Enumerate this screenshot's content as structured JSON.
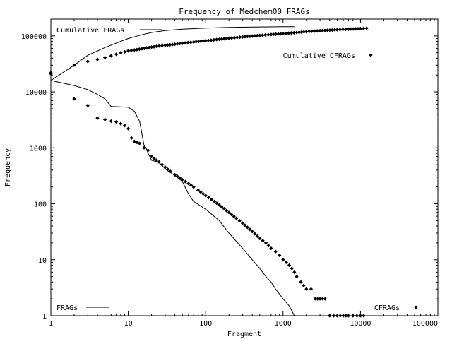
{
  "chart_data": {
    "type": "line",
    "title": "Frequency of Medchem00 FRAGs",
    "xlabel": "Fragment",
    "ylabel": "Frequency",
    "x_scale": "log",
    "y_scale": "log",
    "xlim": [
      1,
      100000
    ],
    "ylim": [
      1,
      200000
    ],
    "grid": false,
    "x_ticks": [
      {
        "value": 1,
        "label": "1"
      },
      {
        "value": 10,
        "label": "10"
      },
      {
        "value": 100,
        "label": "100"
      },
      {
        "value": 1000,
        "label": "1000"
      },
      {
        "value": 10000,
        "label": "10000"
      },
      {
        "value": 100000,
        "label": "100000"
      }
    ],
    "y_ticks": [
      {
        "value": 1,
        "label": "1"
      },
      {
        "value": 10,
        "label": "10"
      },
      {
        "value": 100,
        "label": "100"
      },
      {
        "value": 1000,
        "label": "1000"
      },
      {
        "value": 10000,
        "label": "10000"
      },
      {
        "value": 100000,
        "label": "100000"
      }
    ],
    "series": [
      {
        "name": "Cumulative FRAGs",
        "style": "line",
        "legend_position": "top-left",
        "x": [
          1,
          2,
          3,
          5,
          8,
          10,
          15,
          20,
          30,
          50,
          100,
          200,
          500,
          1000,
          1400
        ],
        "y": [
          16000,
          30000,
          45000,
          62000,
          80000,
          90000,
          105000,
          115000,
          125000,
          132000,
          138000,
          142000,
          145000,
          146000,
          146500
        ]
      },
      {
        "name": "Cumulative CFRAGs",
        "style": "points",
        "legend_position": "top-right",
        "x": [
          1,
          2,
          3,
          4,
          5,
          6,
          7,
          8,
          9,
          10,
          12,
          15,
          20,
          25,
          30,
          40,
          50,
          70,
          100,
          150,
          200,
          300,
          500,
          700,
          1000,
          1500,
          2000,
          3000,
          5000,
          7000,
          10000,
          12000
        ],
        "y": [
          22000,
          30000,
          35000,
          38000,
          41000,
          44000,
          47000,
          50000,
          52000,
          54000,
          56000,
          59000,
          63000,
          66000,
          68000,
          71000,
          74000,
          78000,
          82000,
          87000,
          91000,
          96000,
          102000,
          106000,
          110000,
          115000,
          119000,
          124000,
          129000,
          132000,
          135000,
          137000
        ]
      },
      {
        "name": "FRAGs",
        "style": "line",
        "legend_position": "bottom-left",
        "x": [
          1,
          2,
          3,
          4,
          5,
          6,
          8,
          10,
          12,
          14,
          15,
          16,
          17,
          18,
          20,
          25,
          30,
          40,
          50,
          60,
          70,
          100,
          150,
          200,
          300,
          400,
          500,
          600,
          700,
          800,
          1000,
          1200,
          1400
        ],
        "y": [
          16000,
          13000,
          11000,
          9000,
          7500,
          5500,
          5400,
          5300,
          4500,
          3000,
          1800,
          1100,
          1000,
          800,
          600,
          550,
          420,
          320,
          250,
          150,
          110,
          80,
          50,
          30,
          16,
          10,
          7,
          5,
          4,
          3,
          2,
          1.5,
          1
        ]
      },
      {
        "name": "CFRAGs",
        "style": "points",
        "legend_position": "bottom-right",
        "x": [
          1,
          2,
          3,
          4,
          5,
          6,
          7,
          8,
          9,
          10,
          11,
          12,
          14,
          16,
          18,
          20,
          25,
          30,
          35,
          40,
          50,
          60,
          70,
          80,
          100,
          130,
          150,
          200,
          250,
          300,
          400,
          500,
          600,
          700,
          800,
          900,
          1000,
          1100,
          1200,
          1300,
          1400,
          1500,
          1700,
          2000,
          2300,
          2600,
          3000,
          3500,
          4000,
          4500,
          5000,
          6000,
          7000,
          8000,
          9000,
          10000,
          11000
        ],
        "y": [
          21000,
          7500,
          5700,
          3400,
          3200,
          3000,
          2900,
          2700,
          2500,
          2200,
          1500,
          1300,
          1200,
          1000,
          900,
          700,
          560,
          450,
          380,
          330,
          270,
          230,
          200,
          175,
          140,
          110,
          95,
          70,
          55,
          45,
          32,
          24,
          20,
          16,
          14,
          12,
          10,
          9,
          8,
          7,
          6,
          5,
          4,
          3,
          3,
          2,
          2,
          2,
          1,
          1,
          1,
          1,
          1,
          1,
          1,
          1,
          1
        ]
      }
    ]
  }
}
